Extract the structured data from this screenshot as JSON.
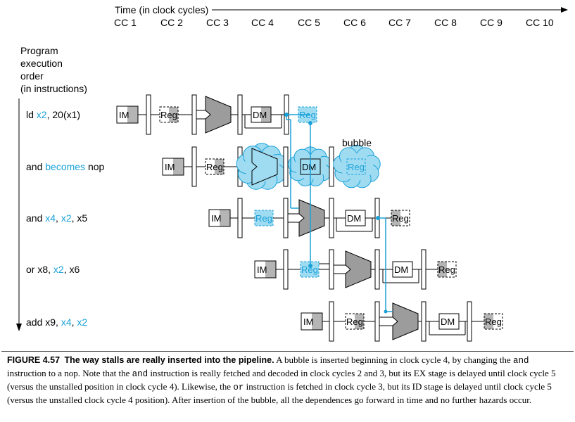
{
  "axis": {
    "title": "Time (in clock cycles)",
    "cycles": [
      "CC 1",
      "CC 2",
      "CC 3",
      "CC 4",
      "CC 5",
      "CC 6",
      "CC 7",
      "CC 8",
      "CC 9",
      "CC 10"
    ]
  },
  "order_label": [
    "Program",
    "execution",
    "order",
    "(in instructions)"
  ],
  "instructions": [
    {
      "parts": [
        {
          "t": "ld ",
          "blue": false
        },
        {
          "t": "x2",
          "blue": true
        },
        {
          "t": ", 20(x1)",
          "blue": false
        }
      ]
    },
    {
      "parts": [
        {
          "t": "and ",
          "blue": false
        },
        {
          "t": "becomes",
          "blue": true
        },
        {
          "t": " nop",
          "blue": false
        }
      ]
    },
    {
      "parts": [
        {
          "t": "and ",
          "blue": false
        },
        {
          "t": "x4",
          "blue": true
        },
        {
          "t": ", ",
          "blue": false
        },
        {
          "t": "x2",
          "blue": true
        },
        {
          "t": ", x5",
          "blue": false
        }
      ]
    },
    {
      "parts": [
        {
          "t": "or x8, ",
          "blue": false
        },
        {
          "t": "x2",
          "blue": true
        },
        {
          "t": ", x6",
          "blue": false
        }
      ]
    },
    {
      "parts": [
        {
          "t": "add x9, ",
          "blue": false
        },
        {
          "t": "x4",
          "blue": true
        },
        {
          "t": ", ",
          "blue": false
        },
        {
          "t": "x2",
          "blue": true
        }
      ]
    }
  ],
  "stage_labels": {
    "im": "IM",
    "reg": "Reg",
    "dm": "DM"
  },
  "bubble_label": "bubble",
  "colors": {
    "accent": "#1aa1d8",
    "light_blue": "#9fdcf2",
    "alu_gray": "#9c9c9c",
    "box_gray": "#b5b5b5"
  },
  "caption": {
    "figure": "FIGURE 4.57",
    "title": "The way stalls are really inserted into the pipeline.",
    "body": [
      {
        "t": " A bubble is inserted beginning in clock cycle 4, by changing the ",
        "code": false
      },
      {
        "t": "and",
        "code": true
      },
      {
        "t": " instruction to a nop. Note that the ",
        "code": false
      },
      {
        "t": "and",
        "code": true
      },
      {
        "t": " instruction is really fetched and decoded in clock cycles 2 and 3, but its EX stage is delayed until clock cycle 5 (versus the unstalled position in clock cycle 4). Likewise, the ",
        "code": false
      },
      {
        "t": "or",
        "code": true
      },
      {
        "t": " instruction is fetched in clock cycle 3, but its ID stage is delayed until clock cycle 5 (versus the unstalled clock cycle 4 position). After insertion of the bubble, all the dependences go forward in time and no further hazards occur.",
        "code": false
      }
    ]
  }
}
